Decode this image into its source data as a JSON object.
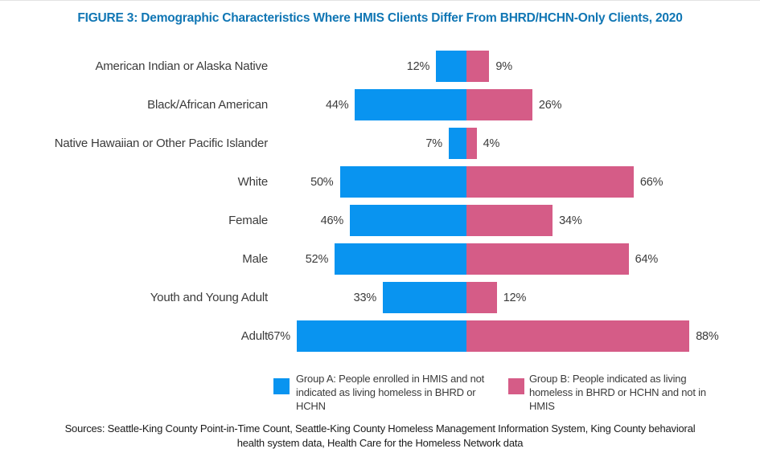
{
  "figure": {
    "title": "FIGURE 3: Demographic Characteristics Where HMIS Clients Differ From BHRD/HCHN-Only Clients, 2020",
    "sources": "Sources:  Seattle-King County Point-in-Time Count, Seattle-King County Homeless Management Information System, King County behavioral health system data, Health Care for the Homeless Network data"
  },
  "colors": {
    "title_text": "#1076B4",
    "group_a": "#0994F0",
    "group_b": "#D55C87",
    "label_text": "#3B3B3B",
    "sources_text": "#1A1A1A"
  },
  "chart_data": {
    "type": "bar",
    "orientation": "horizontal-diverging",
    "title": "FIGURE 3: Demographic Characteristics Where HMIS Clients Differ From BHRD/HCHN-Only Clients, 2020",
    "categories": [
      "American Indian or Alaska Native",
      "Black/African American",
      "Native Hawaiian or Other Pacific Islander",
      "White",
      "Female",
      "Male",
      "Youth and Young Adult",
      "Adult"
    ],
    "series": [
      {
        "name": "Group A: People enrolled in HMIS and not indicated as living homeless in BHRD or HCHN",
        "side": "left",
        "color": "#0994F0",
        "values": [
          12,
          44,
          7,
          50,
          46,
          52,
          33,
          67
        ]
      },
      {
        "name": "Group B: People indicated as living homeless in BHRD or HCHN and not in HMIS",
        "side": "right",
        "color": "#D55C87",
        "values": [
          9,
          26,
          4,
          66,
          34,
          64,
          12,
          88
        ]
      }
    ],
    "unit": "%",
    "value_labels": "outer bar ends",
    "xlim_percent": [
      0,
      100
    ],
    "grid": false,
    "legend_position": "bottom"
  }
}
